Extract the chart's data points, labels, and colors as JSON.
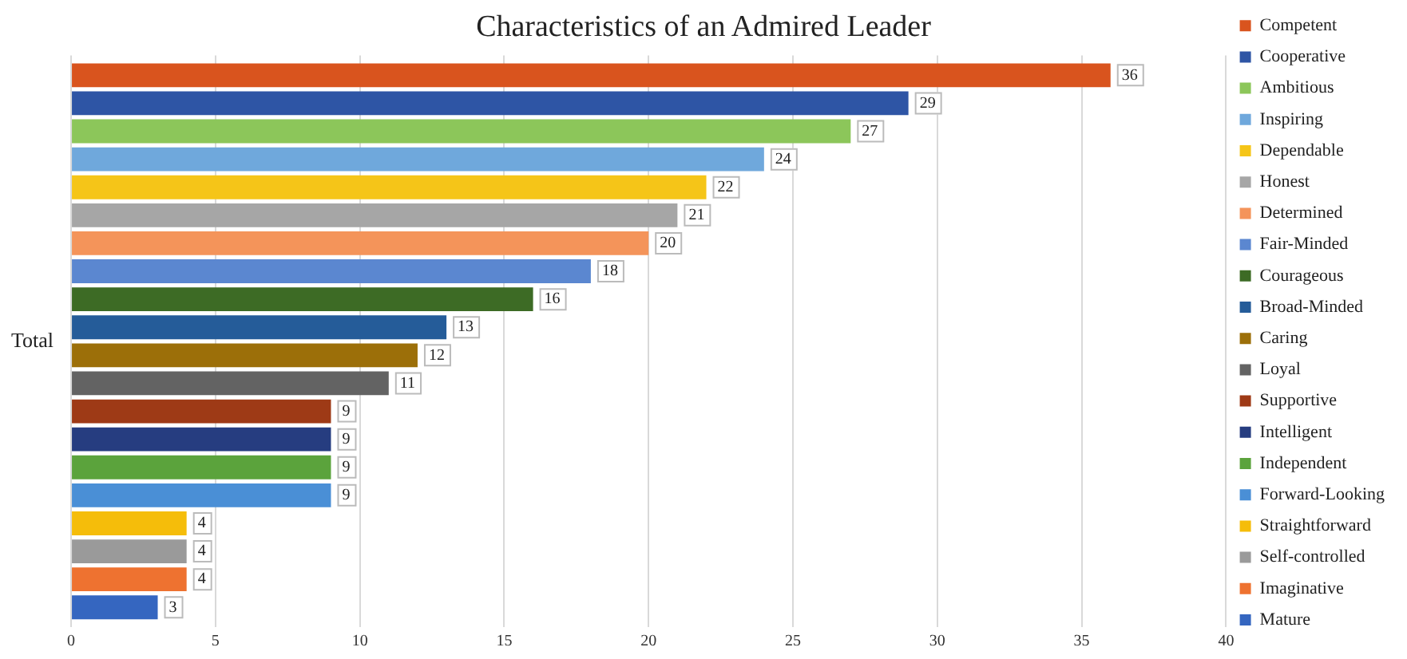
{
  "chart_data": {
    "type": "bar",
    "orientation": "horizontal",
    "title": "Characteristics of an Admired Leader",
    "categories": [
      "Total"
    ],
    "series": [
      {
        "name": "Competent",
        "color": "#d9541e",
        "values": [
          36
        ]
      },
      {
        "name": "Cooperative",
        "color": "#2e55a5",
        "values": [
          29
        ]
      },
      {
        "name": "Ambitious",
        "color": "#8cc65a",
        "values": [
          27
        ]
      },
      {
        "name": "Inspiring",
        "color": "#6fa8dc",
        "values": [
          24
        ]
      },
      {
        "name": "Dependable",
        "color": "#f5c518",
        "values": [
          22
        ]
      },
      {
        "name": "Honest",
        "color": "#a6a6a6",
        "values": [
          21
        ]
      },
      {
        "name": "Determined",
        "color": "#f4945a",
        "values": [
          20
        ]
      },
      {
        "name": "Fair-Minded",
        "color": "#5b87d0",
        "values": [
          18
        ]
      },
      {
        "name": "Courageous",
        "color": "#3d6b25",
        "values": [
          16
        ]
      },
      {
        "name": "Broad-Minded",
        "color": "#255c99",
        "values": [
          13
        ]
      },
      {
        "name": "Caring",
        "color": "#9c6f09",
        "values": [
          12
        ]
      },
      {
        "name": "Loyal",
        "color": "#636363",
        "values": [
          11
        ]
      },
      {
        "name": "Supportive",
        "color": "#9e3a16",
        "values": [
          9
        ]
      },
      {
        "name": "Intelligent",
        "color": "#263d80",
        "values": [
          9
        ]
      },
      {
        "name": "Independent",
        "color": "#5ba33c",
        "values": [
          9
        ]
      },
      {
        "name": "Forward-Looking",
        "color": "#4a8fd6",
        "values": [
          9
        ]
      },
      {
        "name": "Straightforward",
        "color": "#f5bd0a",
        "values": [
          4
        ]
      },
      {
        "name": "Self-controlled",
        "color": "#9a9a9a",
        "values": [
          4
        ]
      },
      {
        "name": "Imaginative",
        "color": "#ee7230",
        "values": [
          4
        ]
      },
      {
        "name": "Mature",
        "color": "#3566c0",
        "values": [
          3
        ]
      }
    ],
    "xlim": [
      0,
      40
    ],
    "xticks": [
      0,
      5,
      10,
      15,
      20,
      25,
      30,
      35,
      40
    ],
    "grid": "x",
    "legend": "right",
    "data_labels": true
  }
}
